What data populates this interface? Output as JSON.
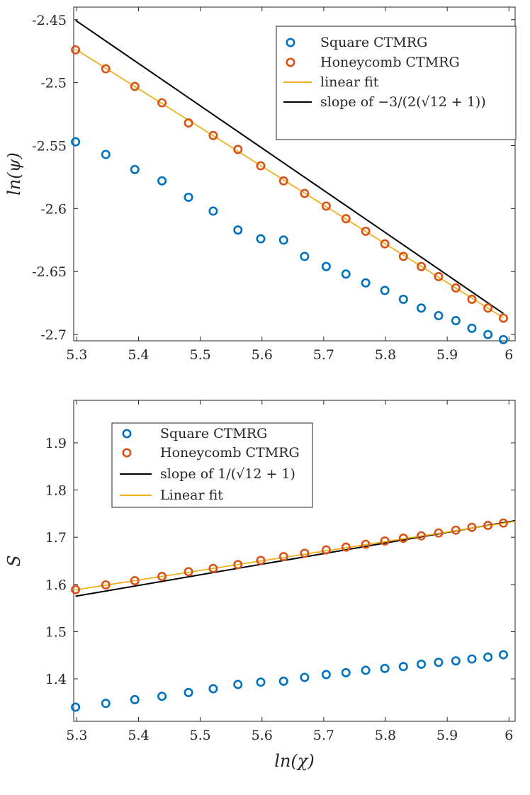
{
  "chart_data": [
    {
      "type": "scatter",
      "title": "",
      "xlabel": "",
      "ylabel": "ln(ψ)",
      "xlim": [
        5.295,
        6.01
      ],
      "ylim": [
        -2.705,
        -2.44
      ],
      "xticks": [
        5.3,
        5.4,
        5.5,
        5.6,
        5.7,
        5.8,
        5.9,
        6.0
      ],
      "xtick_labels": [
        "5.3",
        "5.4",
        "5.5",
        "5.6",
        "5.7",
        "5.8",
        "5.9",
        "6"
      ],
      "yticks": [
        -2.45,
        -2.5,
        -2.55,
        -2.6,
        -2.65,
        -2.7
      ],
      "ytick_labels": [
        "-2.45",
        "-2.5",
        "-2.55",
        "-2.6",
        "-2.65",
        "-2.7"
      ],
      "legend_position": "top-right",
      "series": [
        {
          "name": "Square CTMRG",
          "kind": "markers",
          "color": "#0072BD",
          "x": [
            5.298,
            5.347,
            5.394,
            5.438,
            5.481,
            5.521,
            5.561,
            5.598,
            5.635,
            5.669,
            5.704,
            5.736,
            5.768,
            5.799,
            5.829,
            5.858,
            5.886,
            5.914,
            5.94,
            5.966,
            5.991
          ],
          "y": [
            -2.547,
            -2.557,
            -2.569,
            -2.578,
            -2.591,
            -2.602,
            -2.617,
            -2.624,
            -2.625,
            -2.638,
            -2.646,
            -2.652,
            -2.659,
            -2.665,
            -2.672,
            -2.679,
            -2.685,
            -2.689,
            -2.695,
            -2.7,
            -2.704
          ]
        },
        {
          "name": "Honeycomb CTMRG",
          "kind": "markers",
          "color": "#D95319",
          "x": [
            5.298,
            5.347,
            5.394,
            5.438,
            5.481,
            5.521,
            5.561,
            5.598,
            5.635,
            5.669,
            5.704,
            5.736,
            5.768,
            5.799,
            5.829,
            5.858,
            5.886,
            5.914,
            5.94,
            5.966,
            5.991
          ],
          "y": [
            -2.474,
            -2.489,
            -2.503,
            -2.516,
            -2.532,
            -2.542,
            -2.553,
            -2.566,
            -2.578,
            -2.588,
            -2.598,
            -2.608,
            -2.618,
            -2.628,
            -2.638,
            -2.646,
            -2.654,
            -2.663,
            -2.672,
            -2.679,
            -2.687
          ]
        },
        {
          "name": "linear fit",
          "kind": "line",
          "color": "#EDB120",
          "x": [
            5.298,
            5.991
          ],
          "y": [
            -2.4735,
            -2.6868
          ]
        },
        {
          "name": "slope of −3/(2(√12 + 1))",
          "kind": "line",
          "color": "#000000",
          "x": [
            5.298,
            5.991
          ],
          "y": [
            -2.4505,
            -2.6833
          ]
        }
      ]
    },
    {
      "type": "scatter",
      "title": "",
      "xlabel": "ln(χ)",
      "ylabel": "S",
      "xlim": [
        5.295,
        6.01
      ],
      "ylim": [
        1.31,
        1.99
      ],
      "xticks": [
        5.3,
        5.4,
        5.5,
        5.6,
        5.7,
        5.8,
        5.9,
        6.0
      ],
      "xtick_labels": [
        "5.3",
        "5.4",
        "5.5",
        "5.6",
        "5.7",
        "5.8",
        "5.9",
        "6"
      ],
      "yticks": [
        1.4,
        1.5,
        1.6,
        1.7,
        1.8,
        1.9
      ],
      "ytick_labels": [
        "1.4",
        "1.5",
        "1.6",
        "1.7",
        "1.8",
        "1.9"
      ],
      "legend_position": "top-left",
      "series": [
        {
          "name": "Square CTMRG",
          "kind": "markers",
          "color": "#0072BD",
          "x": [
            5.298,
            5.347,
            5.394,
            5.438,
            5.481,
            5.521,
            5.561,
            5.598,
            5.635,
            5.669,
            5.704,
            5.736,
            5.768,
            5.799,
            5.829,
            5.858,
            5.886,
            5.914,
            5.94,
            5.966,
            5.991
          ],
          "y": [
            1.34,
            1.348,
            1.356,
            1.363,
            1.371,
            1.379,
            1.388,
            1.393,
            1.395,
            1.403,
            1.409,
            1.413,
            1.418,
            1.422,
            1.426,
            1.431,
            1.435,
            1.438,
            1.442,
            1.446,
            1.451
          ]
        },
        {
          "name": "Honeycomb CTMRG",
          "kind": "markers",
          "color": "#D95319",
          "x": [
            5.298,
            5.347,
            5.394,
            5.438,
            5.481,
            5.521,
            5.561,
            5.598,
            5.635,
            5.669,
            5.704,
            5.736,
            5.768,
            5.799,
            5.829,
            5.858,
            5.886,
            5.914,
            5.94,
            5.966,
            5.991
          ],
          "y": [
            1.589,
            1.599,
            1.608,
            1.617,
            1.627,
            1.634,
            1.642,
            1.651,
            1.659,
            1.666,
            1.673,
            1.679,
            1.685,
            1.692,
            1.698,
            1.703,
            1.709,
            1.715,
            1.721,
            1.725,
            1.73
          ]
        },
        {
          "name": "slope of 1/(√12 + 1)",
          "kind": "line",
          "color": "#000000",
          "x": [
            5.298,
            6.01
          ],
          "y": [
            1.575,
            1.735
          ]
        },
        {
          "name": "Linear fit",
          "kind": "line",
          "color": "#EDB120",
          "x": [
            5.298,
            6.01
          ],
          "y": [
            1.5885,
            1.7335
          ]
        }
      ]
    }
  ]
}
